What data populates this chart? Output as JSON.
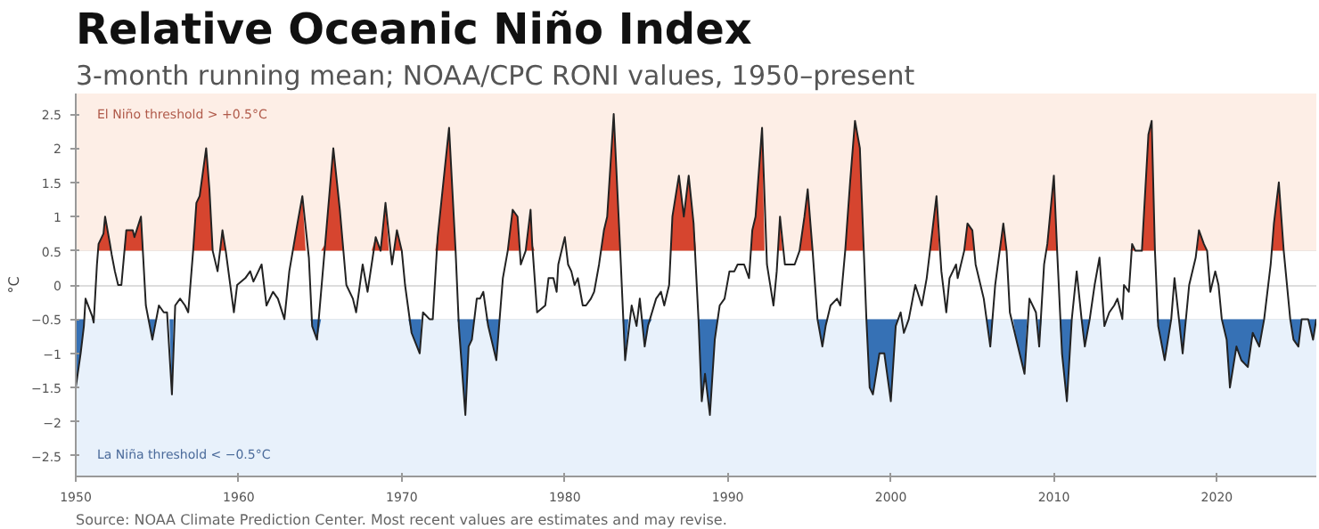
{
  "chart_data": {
    "type": "line",
    "title": "Relative Oceanic Niño Index",
    "subtitle": "3-month running mean; NOAA/CPC RONI values, 1950–present",
    "ylabel": "°C",
    "annotations": [
      "Source: NOAA Climate Prediction Center. Most recent values are estimates and may revise."
    ],
    "xlim": [
      1950,
      2026.1
    ],
    "xticks": [
      1950,
      1960,
      1970,
      1980,
      1990,
      2000,
      2010,
      2020
    ],
    "ylim": [
      -2.8,
      2.8
    ],
    "yticks": [
      -2.5,
      -2.0,
      -1.5,
      -1.0,
      -0.5,
      0.0,
      0.5,
      1.0,
      1.5,
      2.0,
      2.5
    ],
    "grid": "y",
    "bands": [
      {
        "axis": "y",
        "from": 0.5,
        "to": 2.8,
        "label": "El Niño threshold > +0.5°C",
        "color": "#fdeee6"
      },
      {
        "axis": "y",
        "from": -2.8,
        "to": -0.5,
        "label": "La Niña threshold < −0.5°C",
        "color": "#e8f1fb"
      }
    ],
    "x": [
      1950.0,
      1950.3,
      1950.5,
      1950.6,
      1951.0,
      1951.1,
      1951.3,
      1951.4,
      1951.7,
      1951.8,
      1952.1,
      1952.2,
      1952.4,
      1952.6,
      1952.8,
      1953.1,
      1953.5,
      1953.6,
      1954.0,
      1954.3,
      1954.7,
      1955.1,
      1955.4,
      1955.6,
      1955.9,
      1956.1,
      1956.4,
      1956.7,
      1956.9,
      1957.2,
      1957.4,
      1957.6,
      1958.0,
      1958.2,
      1958.4,
      1958.7,
      1959.0,
      1959.2,
      1959.7,
      1959.9,
      1960.4,
      1960.7,
      1960.9,
      1961.2,
      1961.4,
      1961.7,
      1962.1,
      1962.4,
      1962.8,
      1963.1,
      1963.6,
      1963.9,
      1964.3,
      1964.5,
      1964.8,
      1965.3,
      1965.8,
      1966.2,
      1966.6,
      1967.0,
      1967.2,
      1967.6,
      1967.9,
      1968.4,
      1968.7,
      1969.0,
      1969.4,
      1969.7,
      1970.0,
      1970.2,
      1970.6,
      1971.1,
      1971.3,
      1971.7,
      1971.9,
      1972.2,
      1972.9,
      1973.3,
      1973.5,
      1973.9,
      1974.1,
      1974.3,
      1974.6,
      1974.8,
      1975.0,
      1975.3,
      1975.6,
      1975.8,
      1976.2,
      1976.5,
      1976.8,
      1977.1,
      1977.3,
      1977.6,
      1977.9,
      1978.0,
      1978.3,
      1978.8,
      1979.0,
      1979.3,
      1979.5,
      1979.6,
      1980.0,
      1980.2,
      1980.4,
      1980.6,
      1980.8,
      1981.1,
      1981.3,
      1981.6,
      1981.8,
      1982.1,
      1982.4,
      1982.6,
      1983.0,
      1983.4,
      1983.7,
      1984.1,
      1984.4,
      1984.6,
      1984.9,
      1985.1,
      1985.6,
      1985.9,
      1986.1,
      1986.4,
      1986.6,
      1987.0,
      1987.3,
      1987.6,
      1987.9,
      1988.2,
      1988.4,
      1988.6,
      1988.9,
      1989.2,
      1989.5,
      1989.8,
      1990.1,
      1990.4,
      1990.6,
      1991.0,
      1991.3,
      1991.5,
      1991.7,
      1992.1,
      1992.4,
      1992.8,
      1993.0,
      1993.2,
      1993.5,
      1993.8,
      1994.1,
      1994.4,
      1994.7,
      1994.9,
      1995.2,
      1995.5,
      1995.8,
      1996.0,
      1996.3,
      1996.7,
      1996.9,
      1997.2,
      1997.5,
      1997.8,
      1998.1,
      1998.5,
      1998.7,
      1998.9,
      1999.3,
      1999.6,
      2000.0,
      2000.3,
      2000.6,
      2000.8,
      2001.1,
      2001.5,
      2001.9,
      2002.2,
      2002.6,
      2002.8,
      2003.1,
      2003.4,
      2003.6,
      2004.0,
      2004.1,
      2004.5,
      2004.7,
      2005.0,
      2005.2,
      2005.5,
      2005.7,
      2006.1,
      2006.4,
      2006.9,
      2007.1,
      2007.3,
      2007.7,
      2008.0,
      2008.2,
      2008.5,
      2008.9,
      2009.1,
      2009.4,
      2009.6,
      2010.0,
      2010.2,
      2010.5,
      2010.8,
      2011.1,
      2011.4,
      2011.7,
      2011.9,
      2012.2,
      2012.5,
      2012.8,
      2013.1,
      2013.4,
      2013.7,
      2013.9,
      2014.2,
      2014.3,
      2014.6,
      2014.8,
      2015.0,
      2015.4,
      2015.8,
      2016.0,
      2016.2,
      2016.4,
      2016.8,
      2017.2,
      2017.4,
      2017.9,
      2018.3,
      2018.7,
      2018.9,
      2019.2,
      2019.4,
      2019.6,
      2019.9,
      2020.1,
      2020.3,
      2020.6,
      2020.8,
      2021.2,
      2021.5,
      2021.9,
      2022.2,
      2022.6,
      2022.9,
      2023.3,
      2023.5,
      2023.8,
      2024.1,
      2024.5,
      2024.7,
      2025.0,
      2025.2,
      2025.6,
      2025.9,
      2026.1
    ],
    "series": [
      {
        "type": "area",
        "color": "#d6452f",
        "values": [
          null,
          null,
          null,
          null,
          null,
          null,
          null,
          0.6,
          0.75,
          1.0,
          0.6,
          null,
          null,
          null,
          null,
          0.8,
          0.8,
          0.7,
          1.0,
          null,
          null,
          null,
          null,
          null,
          null,
          null,
          null,
          null,
          null,
          0.5,
          1.2,
          1.3,
          2.0,
          1.4,
          0.5,
          null,
          0.8,
          0.5,
          null,
          null,
          null,
          null,
          null,
          null,
          null,
          null,
          null,
          null,
          null,
          null,
          0.9,
          1.3,
          null,
          null,
          null,
          0.6,
          2.0,
          1.1,
          null,
          null,
          null,
          null,
          null,
          0.7,
          0.5,
          1.2,
          null,
          0.8,
          0.5,
          null,
          null,
          null,
          null,
          null,
          null,
          0.7,
          2.3,
          0.5,
          null,
          null,
          null,
          null,
          null,
          null,
          null,
          null,
          null,
          null,
          null,
          0.5,
          1.1,
          1.0,
          null,
          0.5,
          1.1,
          0.6,
          null,
          null,
          null,
          null,
          null,
          null,
          null,
          null,
          null,
          null,
          null,
          null,
          null,
          null,
          null,
          null,
          0.8,
          1.0,
          2.5,
          0.5,
          null,
          null,
          null,
          null,
          null,
          null,
          null,
          null,
          null,
          null,
          1.0,
          1.6,
          1.0,
          1.6,
          0.9,
          null,
          null,
          null,
          null,
          null,
          null,
          null,
          null,
          null,
          null,
          null,
          null,
          0.8,
          1.0,
          2.3,
          null,
          null,
          null,
          1.0,
          null,
          null,
          null,
          0.5,
          1.0,
          1.4,
          0.5,
          null,
          null,
          null,
          null,
          null,
          null,
          0.5,
          1.5,
          2.4,
          2.0,
          null,
          null,
          null,
          null,
          null,
          null,
          null,
          null,
          null,
          null,
          null,
          null,
          null,
          0.9,
          1.3,
          null,
          null,
          null,
          null,
          null,
          0.5,
          0.9,
          0.8,
          null,
          null,
          null,
          null,
          null,
          0.9,
          0.5,
          null,
          null,
          null,
          null,
          null,
          null,
          null,
          null,
          0.6,
          1.6,
          0.5,
          null,
          null,
          null,
          null,
          null,
          null,
          null,
          null,
          null,
          null,
          null,
          null,
          null,
          null,
          null,
          null,
          0.6,
          0.5,
          0.5,
          2.2,
          2.4,
          0.5,
          null,
          null,
          null,
          null,
          null,
          null,
          null,
          0.8,
          0.6,
          0.5,
          null,
          null,
          null,
          null,
          null,
          null,
          null,
          null,
          null,
          null,
          null,
          null,
          null,
          0.9,
          1.5,
          0.5,
          null,
          null,
          null,
          null,
          null,
          null,
          null
        ]
      },
      {
        "type": "area",
        "color": "#3671b5",
        "values": [
          -1.5,
          -1.0,
          -0.6,
          null,
          null,
          null,
          null,
          null,
          null,
          null,
          null,
          null,
          null,
          null,
          null,
          null,
          null,
          null,
          null,
          null,
          -0.8,
          null,
          null,
          null,
          -1.6,
          null,
          null,
          null,
          null,
          null,
          null,
          null,
          null,
          null,
          null,
          null,
          null,
          null,
          null,
          null,
          null,
          null,
          null,
          null,
          null,
          null,
          null,
          null,
          null,
          null,
          null,
          null,
          null,
          -0.6,
          -0.8,
          null,
          null,
          null,
          null,
          null,
          null,
          null,
          null,
          null,
          null,
          null,
          null,
          null,
          null,
          null,
          -0.7,
          -1.0,
          null,
          null,
          null,
          null,
          null,
          null,
          -0.6,
          -1.9,
          -0.9,
          -0.8,
          null,
          null,
          null,
          -0.6,
          -0.9,
          -1.1,
          null,
          null,
          null,
          null,
          null,
          null,
          null,
          null,
          null,
          null,
          null,
          null,
          null,
          null,
          null,
          null,
          null,
          null,
          null,
          null,
          null,
          null,
          null,
          null,
          null,
          null,
          null,
          null,
          -1.1,
          null,
          null,
          null,
          -0.9,
          -0.6,
          null,
          null,
          null,
          null,
          null,
          null,
          null,
          null,
          null,
          -0.5,
          -1.7,
          -1.3,
          -1.9,
          -0.8,
          null,
          null,
          null,
          null,
          null,
          null,
          null,
          null,
          null,
          null,
          null,
          null,
          null,
          null,
          null,
          null,
          null,
          null,
          null,
          null,
          null,
          -0.5,
          -0.9,
          -0.6,
          null,
          null,
          null,
          null,
          null,
          null,
          null,
          -0.5,
          -1.5,
          -1.6,
          -1.0,
          -1.0,
          -1.7,
          -0.6,
          null,
          null,
          null,
          null,
          null,
          null,
          null,
          null,
          null,
          null,
          null,
          null,
          null,
          null,
          null,
          null,
          null,
          null,
          null,
          -0.9,
          null,
          null,
          null,
          null,
          -0.8,
          -1.1,
          -1.3,
          null,
          null,
          -0.9,
          null,
          null,
          null,
          null,
          -1.0,
          -1.7,
          -0.5,
          null,
          -0.5,
          -0.9,
          -0.5,
          null,
          null,
          null,
          null,
          null,
          null,
          null,
          null,
          null,
          null,
          null,
          null,
          null,
          null,
          null,
          -0.6,
          -1.1,
          -0.5,
          null,
          -1.0,
          null,
          null,
          null,
          null,
          null,
          null,
          null,
          null,
          -0.5,
          -0.8,
          -1.5,
          -0.9,
          -1.1,
          -1.2,
          -0.7,
          -0.9,
          -0.5,
          null,
          null,
          null,
          null,
          -0.5,
          -0.8,
          -0.9,
          -0.5,
          -0.5,
          -0.8,
          -0.5
        ]
      },
      {
        "color": "#222222",
        "values": [
          -1.5,
          -1.0,
          -0.6,
          -0.2,
          -0.45,
          -0.55,
          0.3,
          0.6,
          0.75,
          1.0,
          0.6,
          0.45,
          0.2,
          0.0,
          0.0,
          0.8,
          0.8,
          0.7,
          1.0,
          -0.3,
          -0.8,
          -0.3,
          -0.4,
          -0.4,
          -1.6,
          -0.3,
          -0.2,
          -0.3,
          -0.4,
          0.5,
          1.2,
          1.3,
          2.0,
          1.4,
          0.5,
          0.2,
          0.8,
          0.5,
          -0.4,
          0.0,
          0.1,
          0.2,
          0.05,
          0.2,
          0.3,
          -0.3,
          -0.1,
          -0.2,
          -0.5,
          0.2,
          0.9,
          1.3,
          0.4,
          -0.6,
          -0.8,
          0.6,
          2.0,
          1.1,
          0.0,
          -0.2,
          -0.4,
          0.3,
          -0.1,
          0.7,
          0.5,
          1.2,
          0.3,
          0.8,
          0.5,
          0.0,
          -0.7,
          -1.0,
          -0.4,
          -0.5,
          -0.5,
          0.7,
          2.3,
          0.5,
          -0.6,
          -1.9,
          -0.9,
          -0.8,
          -0.2,
          -0.2,
          -0.1,
          -0.6,
          -0.9,
          -1.1,
          0.1,
          0.5,
          1.1,
          1.0,
          0.3,
          0.5,
          1.1,
          0.6,
          -0.4,
          -0.3,
          0.1,
          0.1,
          -0.1,
          0.3,
          0.7,
          0.3,
          0.2,
          0.0,
          0.1,
          -0.3,
          -0.3,
          -0.2,
          -0.1,
          0.3,
          0.8,
          1.0,
          2.5,
          0.5,
          -1.1,
          -0.3,
          -0.6,
          -0.2,
          -0.9,
          -0.6,
          -0.2,
          -0.1,
          -0.3,
          0.0,
          1.0,
          1.6,
          1.0,
          1.6,
          0.9,
          -0.5,
          -1.7,
          -1.3,
          -1.9,
          -0.8,
          -0.3,
          -0.2,
          0.2,
          0.2,
          0.3,
          0.3,
          0.1,
          0.8,
          1.0,
          2.3,
          0.3,
          -0.3,
          0.2,
          1.0,
          0.3,
          0.3,
          0.3,
          0.5,
          1.0,
          1.4,
          0.5,
          -0.5,
          -0.9,
          -0.6,
          -0.3,
          -0.2,
          -0.3,
          0.5,
          1.5,
          2.4,
          2.0,
          -0.5,
          -1.5,
          -1.6,
          -1.0,
          -1.0,
          -1.7,
          -0.6,
          -0.4,
          -0.7,
          -0.5,
          0.0,
          -0.3,
          0.1,
          0.9,
          1.3,
          0.2,
          -0.4,
          0.1,
          0.3,
          0.1,
          0.5,
          0.9,
          0.8,
          0.3,
          0.0,
          -0.2,
          -0.9,
          0.0,
          0.9,
          0.5,
          -0.4,
          -0.8,
          -1.1,
          -1.3,
          -0.2,
          -0.4,
          -0.9,
          0.3,
          0.6,
          1.6,
          0.5,
          -1.0,
          -1.7,
          -0.5,
          0.2,
          -0.5,
          -0.9,
          -0.5,
          0.0,
          0.4,
          -0.6,
          -0.4,
          -0.3,
          -0.2,
          -0.5,
          0.0,
          -0.1,
          0.6,
          0.5,
          0.5,
          2.2,
          2.4,
          0.5,
          -0.6,
          -1.1,
          -0.5,
          0.1,
          -1.0,
          0.0,
          0.4,
          0.8,
          0.6,
          0.5,
          -0.1,
          0.2,
          0.0,
          -0.5,
          -0.8,
          -1.5,
          -0.9,
          -1.1,
          -1.2,
          -0.7,
          -0.9,
          -0.5,
          0.3,
          0.9,
          1.5,
          0.5,
          -0.5,
          -0.8,
          -0.9,
          -0.5,
          -0.5,
          -0.8,
          -0.5
        ]
      }
    ]
  }
}
